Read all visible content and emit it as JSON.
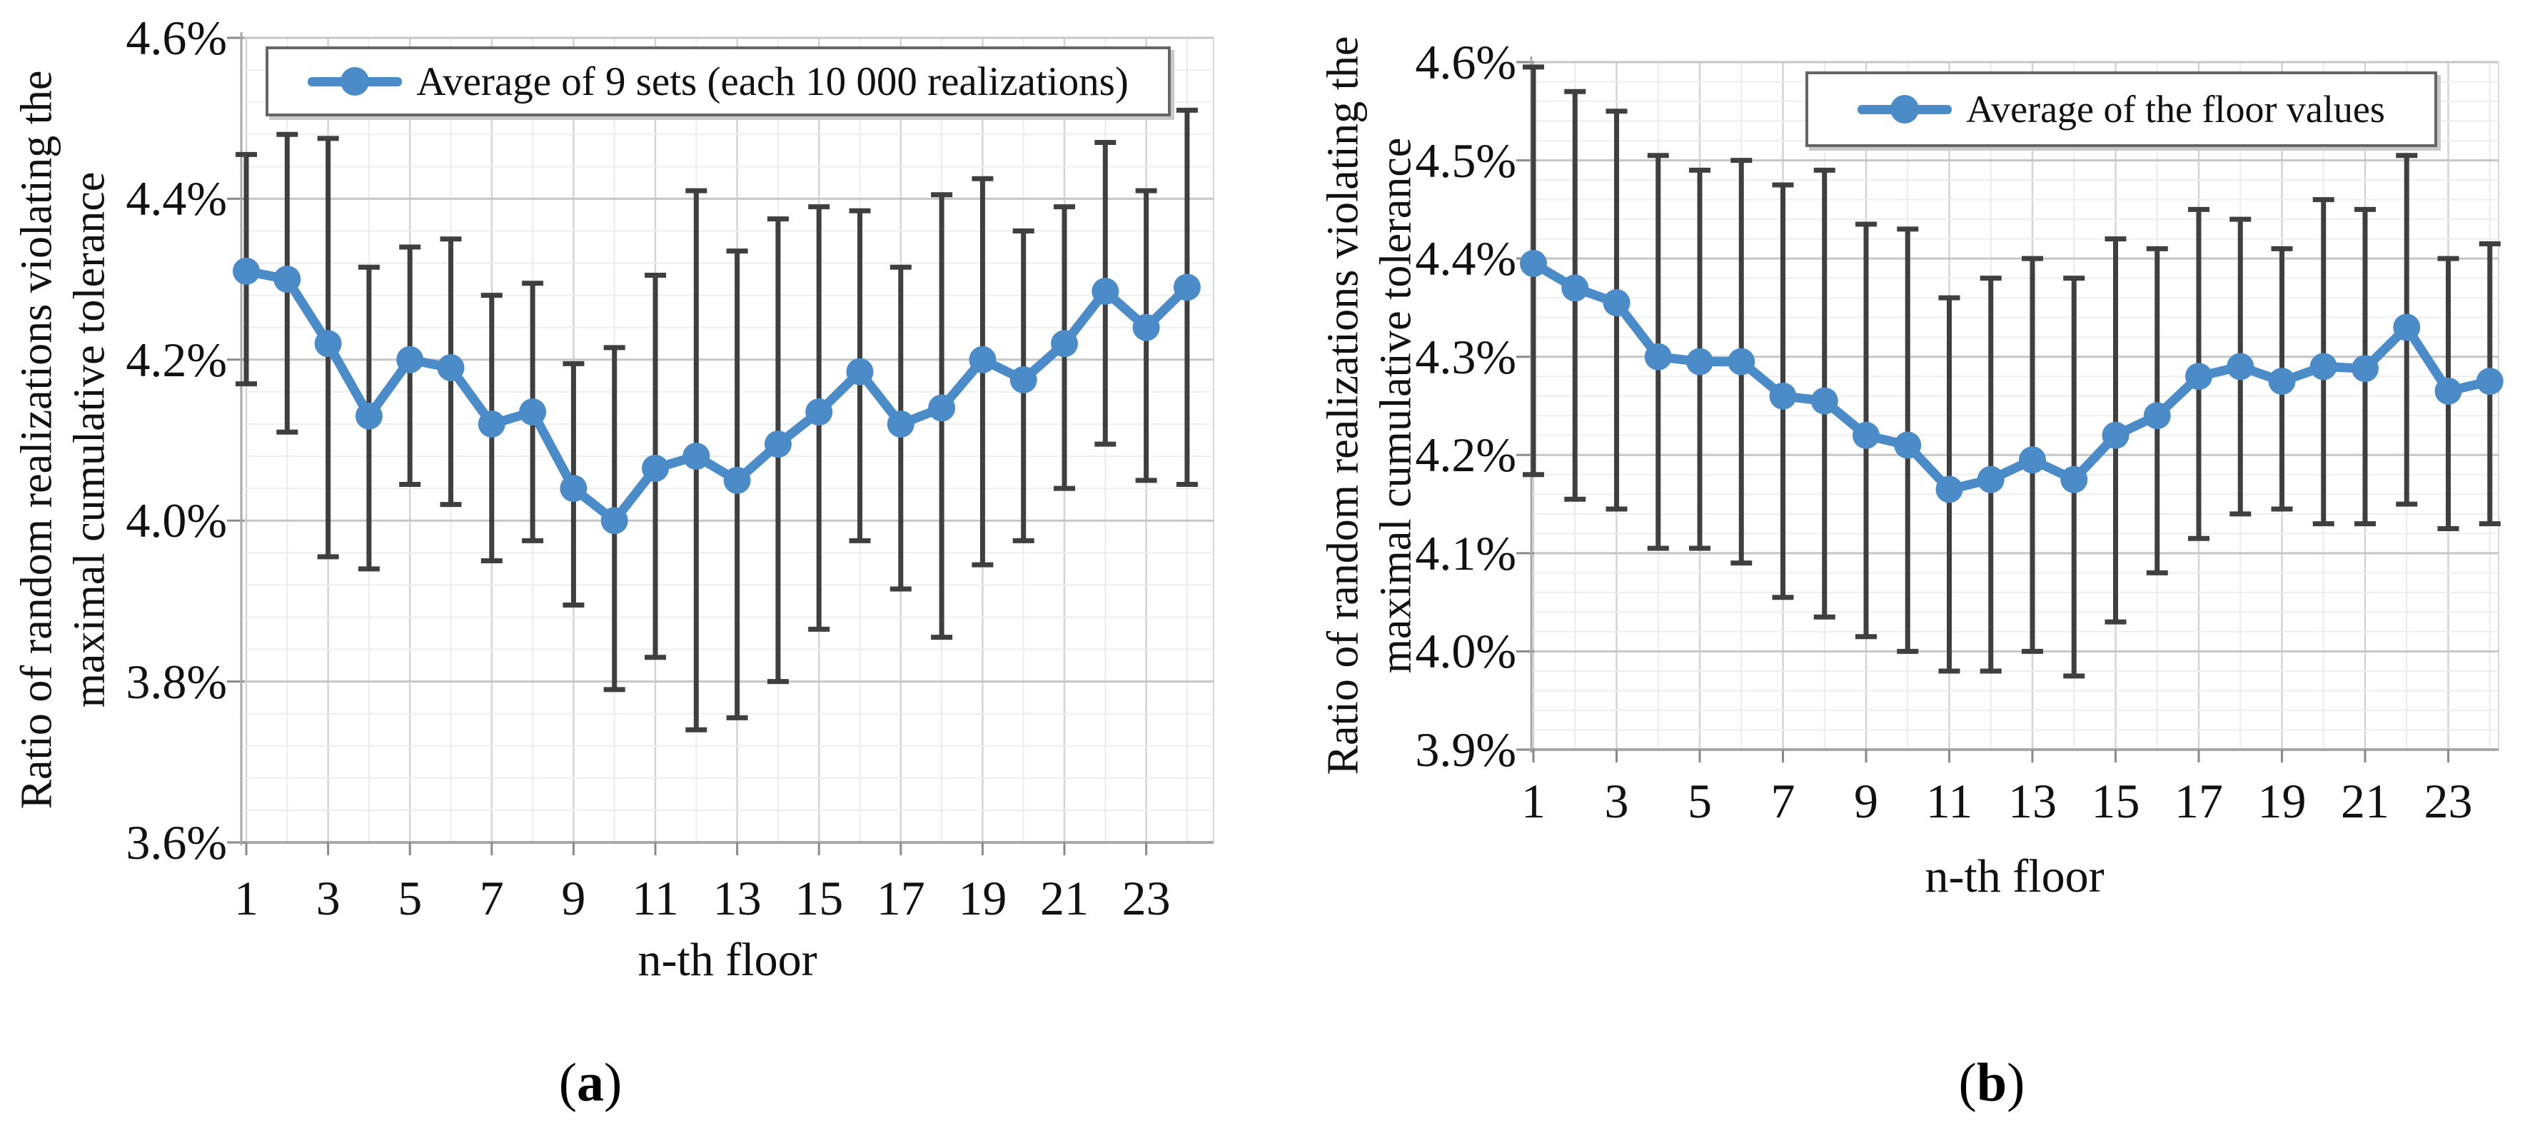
{
  "chart_data": [
    {
      "id": "a",
      "type": "line",
      "title": "",
      "caption": "(a)",
      "caption_open": "(",
      "caption_letter": "a",
      "caption_close": ")",
      "legend": [
        "Average of 9 sets (each 10 000 realizations)"
      ],
      "legend_position": "top-center",
      "xlabel": "n-th floor",
      "ylabel": "Ratio of random realizations violating the maximal cumulative tolerance",
      "ylabel_lines": [
        "Ratio of random realizations violating the",
        "maximal cumulative tolerance"
      ],
      "grid": true,
      "x": [
        1,
        2,
        3,
        4,
        5,
        6,
        7,
        8,
        9,
        10,
        11,
        12,
        13,
        14,
        15,
        16,
        17,
        18,
        19,
        20,
        21,
        22,
        23,
        24
      ],
      "xtick_labels": [
        "1",
        "3",
        "5",
        "7",
        "9",
        "11",
        "13",
        "15",
        "17",
        "19",
        "21",
        "23"
      ],
      "xticks_labeled_at": [
        1,
        3,
        5,
        7,
        9,
        11,
        13,
        15,
        17,
        19,
        21,
        23
      ],
      "ylim": [
        3.6,
        4.6
      ],
      "ytick_values": [
        4.6,
        4.4,
        4.2,
        4.0,
        3.8,
        3.6
      ],
      "ytick_labels": [
        "4.6%",
        "4.4%",
        "4.2%",
        "4.0%",
        "3.8%",
        "3.6%"
      ],
      "yminor_step": 0.04,
      "unit": "percent",
      "series": [
        {
          "name": "Average of 9 sets (each 10 000 realizations)",
          "values": [
            4.31,
            4.3,
            4.22,
            4.13,
            4.2,
            4.19,
            4.12,
            4.135,
            4.04,
            4.0,
            4.065,
            4.08,
            4.05,
            4.095,
            4.135,
            4.185,
            4.12,
            4.14,
            4.2,
            4.175,
            4.22,
            4.285,
            4.24,
            4.29
          ]
        }
      ],
      "error_bars": {
        "upper": [
          4.455,
          4.48,
          4.475,
          4.315,
          4.34,
          4.35,
          4.28,
          4.295,
          4.195,
          4.215,
          4.305,
          4.41,
          4.335,
          4.375,
          4.39,
          4.385,
          4.315,
          4.405,
          4.425,
          4.36,
          4.39,
          4.47,
          4.41,
          4.51
        ],
        "lower": [
          4.17,
          4.11,
          3.955,
          3.94,
          4.045,
          4.02,
          3.95,
          3.975,
          3.895,
          3.79,
          3.83,
          3.74,
          3.755,
          3.8,
          3.865,
          3.975,
          3.915,
          3.855,
          3.945,
          3.975,
          4.04,
          4.095,
          4.05,
          4.045
        ]
      },
      "colors": {
        "line": "#4A8BC8",
        "error_bar": "#3F3F3F",
        "grid_major": "#c6c6c6",
        "grid_minor": "#ededed",
        "axis": "#a8a8a8"
      }
    },
    {
      "id": "b",
      "type": "line",
      "title": "",
      "caption": "(b)",
      "caption_open": "(",
      "caption_letter": "b",
      "caption_close": ")",
      "legend": [
        "Average of the floor values"
      ],
      "legend_position": "top-center",
      "xlabel": "n-th floor",
      "ylabel": "Ratio of random realizations violating the maximal cumulative tolerance",
      "ylabel_lines": [
        "Ratio of random realizations violating the",
        "maximal cumulative tolerance"
      ],
      "grid": true,
      "x": [
        1,
        2,
        3,
        4,
        5,
        6,
        7,
        8,
        9,
        10,
        11,
        12,
        13,
        14,
        15,
        16,
        17,
        18,
        19,
        20,
        21,
        22,
        23,
        24
      ],
      "xtick_labels": [
        "1",
        "3",
        "5",
        "7",
        "9",
        "11",
        "13",
        "15",
        "17",
        "19",
        "21",
        "23"
      ],
      "xticks_labeled_at": [
        1,
        3,
        5,
        7,
        9,
        11,
        13,
        15,
        17,
        19,
        21,
        23
      ],
      "ylim": [
        3.9,
        4.6
      ],
      "ytick_values": [
        4.6,
        4.5,
        4.4,
        4.3,
        4.2,
        4.1,
        4.0,
        3.9
      ],
      "ytick_labels": [
        "4.6%",
        "4.5%",
        "4.4%",
        "4.3%",
        "4.2%",
        "4.1%",
        "4.0%",
        "3.9%"
      ],
      "yminor_step": 0.02,
      "unit": "percent",
      "series": [
        {
          "name": "Average of the floor values",
          "values": [
            4.395,
            4.37,
            4.355,
            4.3,
            4.295,
            4.295,
            4.26,
            4.255,
            4.22,
            4.21,
            4.165,
            4.175,
            4.195,
            4.175,
            4.22,
            4.24,
            4.28,
            4.29,
            4.275,
            4.29,
            4.288,
            4.33,
            4.265,
            4.275
          ]
        }
      ],
      "error_bars": {
        "upper": [
          4.595,
          4.57,
          4.55,
          4.505,
          4.49,
          4.5,
          4.475,
          4.49,
          4.435,
          4.43,
          4.36,
          4.38,
          4.4,
          4.38,
          4.42,
          4.41,
          4.45,
          4.44,
          4.41,
          4.46,
          4.45,
          4.505,
          4.4,
          4.415
        ],
        "lower": [
          4.18,
          4.155,
          4.145,
          4.105,
          4.105,
          4.09,
          4.055,
          4.035,
          4.015,
          4.0,
          3.98,
          3.98,
          4.0,
          3.975,
          4.03,
          4.08,
          4.115,
          4.14,
          4.145,
          4.13,
          4.13,
          4.15,
          4.125,
          4.13
        ]
      },
      "colors": {
        "line": "#4A8BC8",
        "error_bar": "#3F3F3F",
        "grid_major": "#c6c6c6",
        "grid_minor": "#ededed",
        "axis": "#a8a8a8"
      }
    }
  ]
}
